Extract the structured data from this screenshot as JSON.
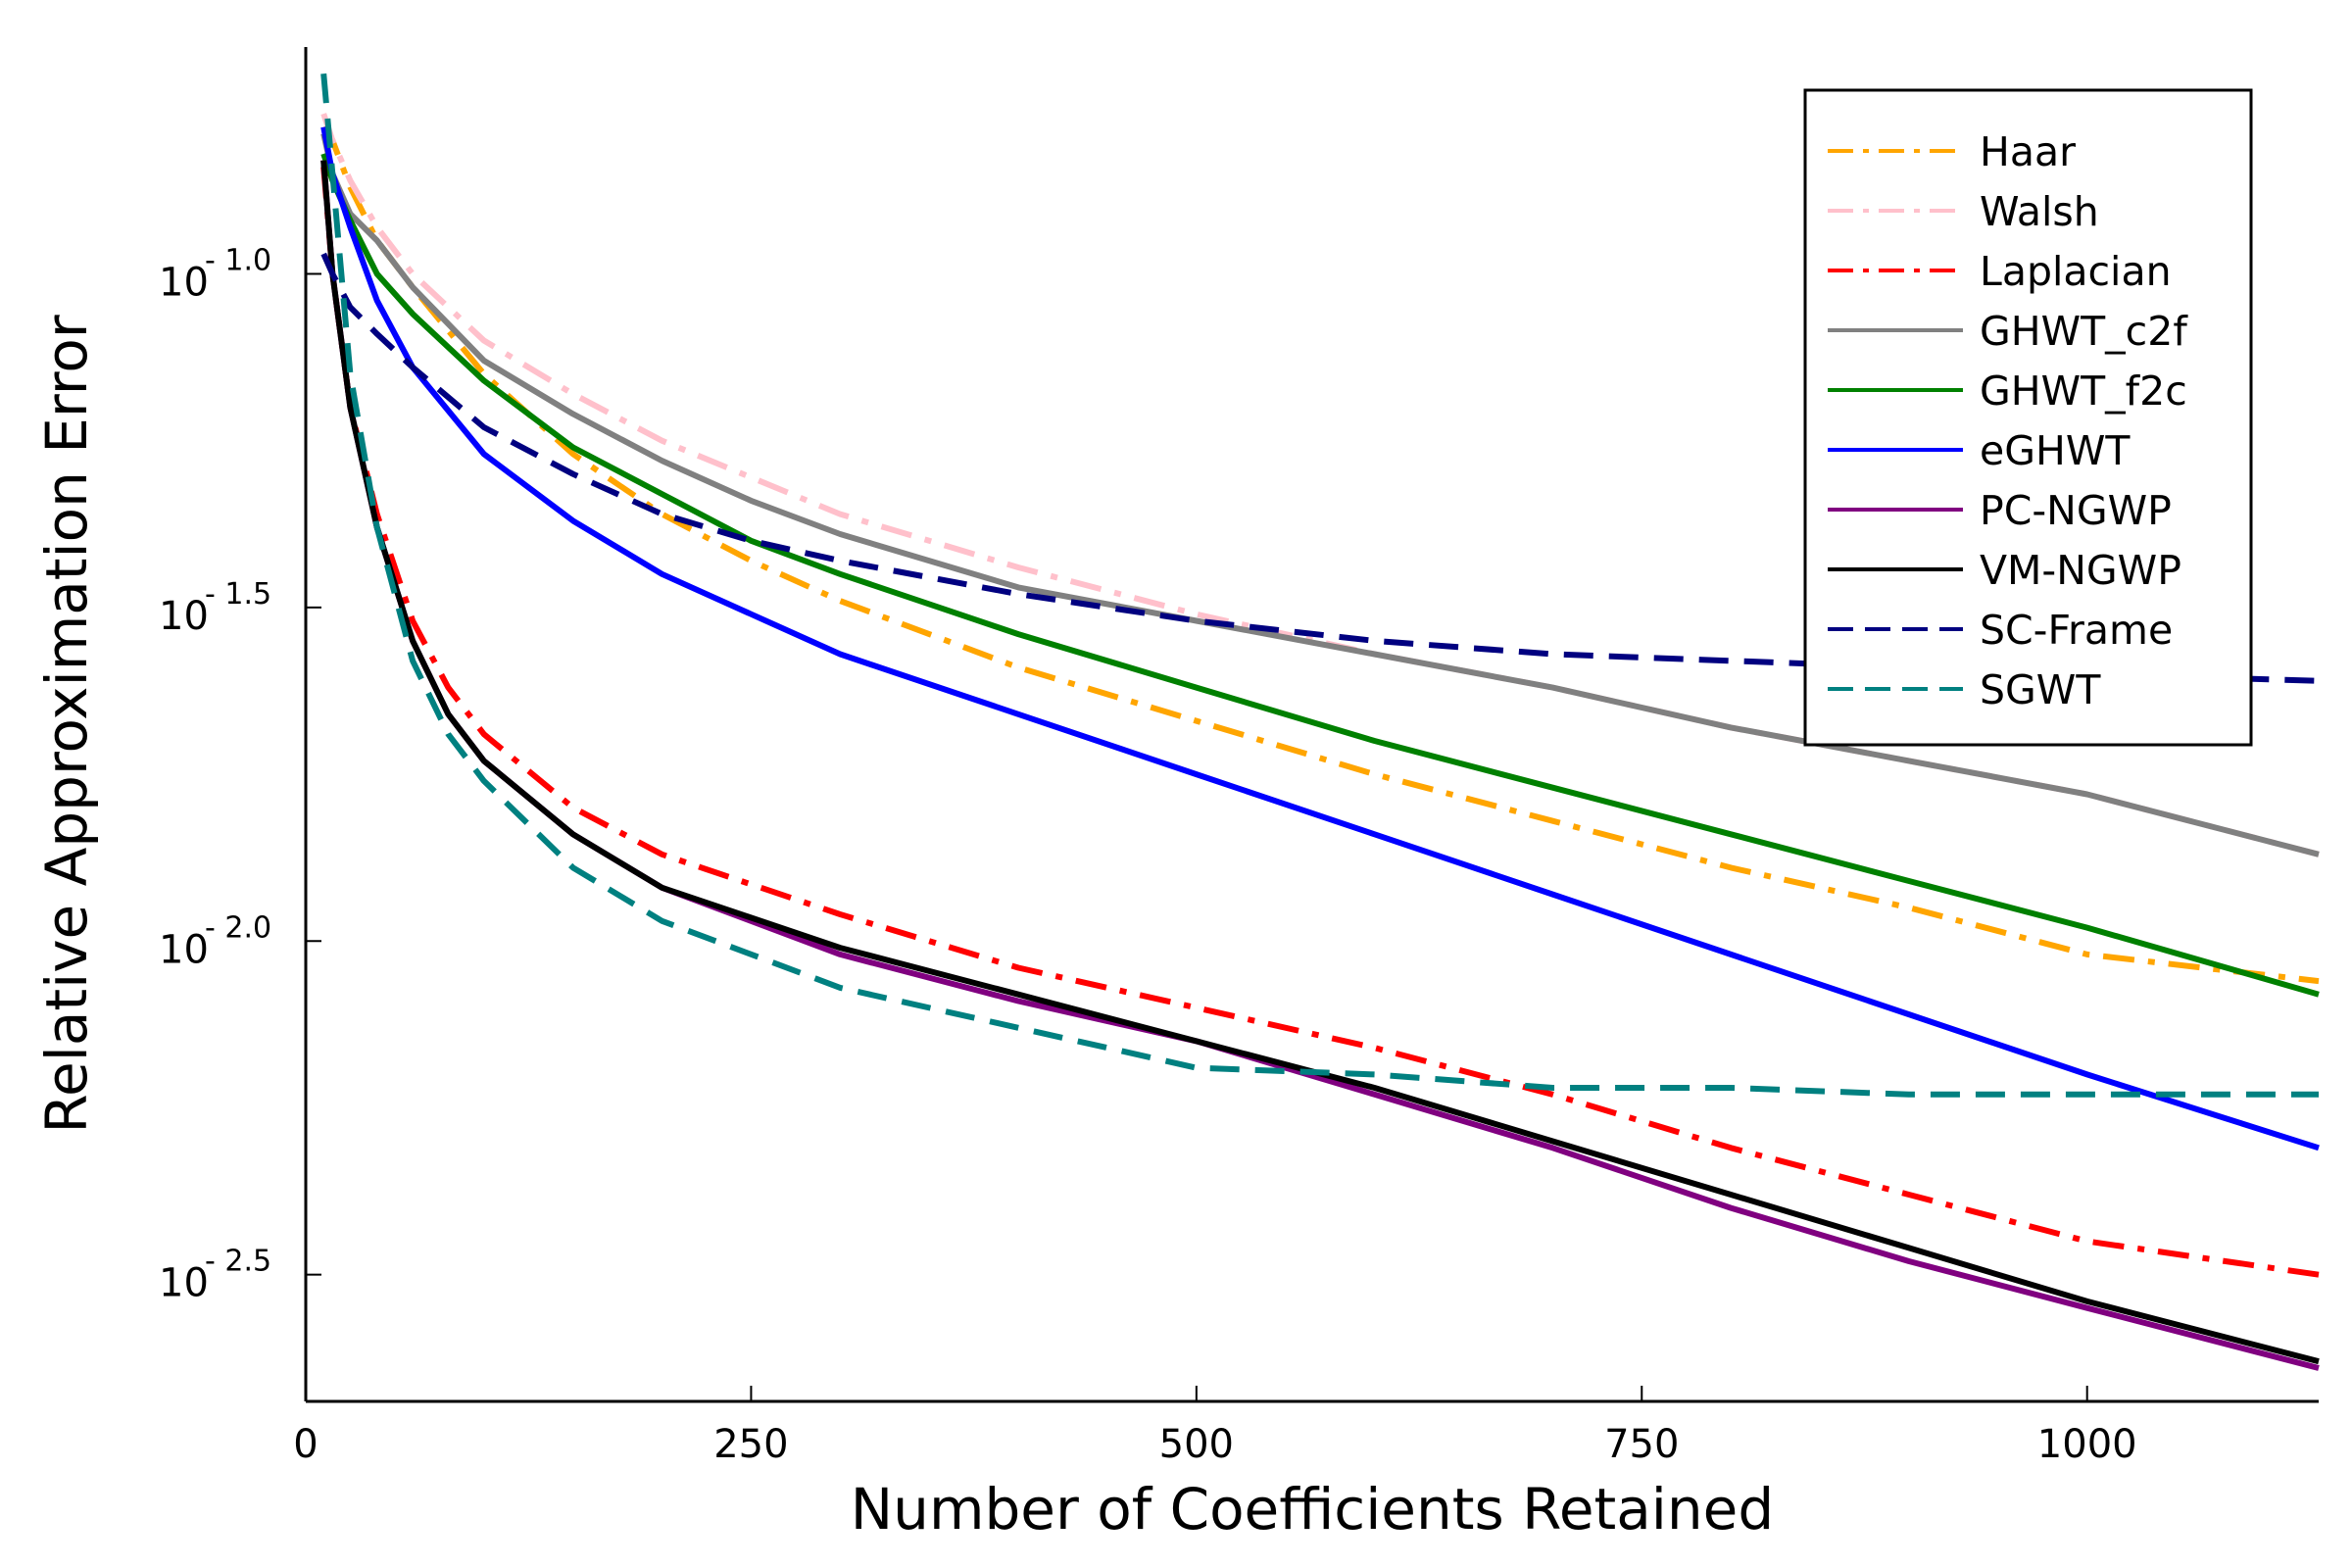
{
  "chart_data": {
    "type": "line",
    "title": "",
    "xlabel": "Number of Coefficients Retained",
    "ylabel": "Relative Approximation Error",
    "y_scale": "log10",
    "xlim": [
      0,
      1130
    ],
    "ylim_log10": [
      -2.69,
      -0.66
    ],
    "grid": false,
    "legend_position": "top-right",
    "x_ticks": [
      {
        "value": 0,
        "label": "0"
      },
      {
        "value": 250,
        "label": "250"
      },
      {
        "value": 500,
        "label": "500"
      },
      {
        "value": 750,
        "label": "750"
      },
      {
        "value": 1000,
        "label": "1000"
      }
    ],
    "y_ticks": [
      {
        "value": -1.0,
        "base": "10",
        "exp": "- 1.0"
      },
      {
        "value": -1.5,
        "base": "10",
        "exp": "- 1.5"
      },
      {
        "value": -2.0,
        "base": "10",
        "exp": "- 2.0"
      },
      {
        "value": -2.5,
        "base": "10",
        "exp": "- 2.5"
      }
    ],
    "series": [
      {
        "name": "Haar",
        "color": "#FFA500",
        "dash": "dashdot",
        "points": [
          [
            10,
            -0.78
          ],
          [
            15,
            -0.8
          ],
          [
            25,
            -0.87
          ],
          [
            40,
            -0.95
          ],
          [
            60,
            -1.02
          ],
          [
            100,
            -1.15
          ],
          [
            150,
            -1.27
          ],
          [
            200,
            -1.36
          ],
          [
            250,
            -1.43
          ],
          [
            300,
            -1.49
          ],
          [
            350,
            -1.54
          ],
          [
            400,
            -1.59
          ],
          [
            500,
            -1.67
          ],
          [
            600,
            -1.75
          ],
          [
            700,
            -1.82
          ],
          [
            800,
            -1.89
          ],
          [
            900,
            -1.95
          ],
          [
            1000,
            -2.02
          ],
          [
            1130,
            -2.06
          ]
        ]
      },
      {
        "name": "Walsh",
        "color": "#FFC0CB",
        "dash": "dashdot",
        "points": [
          [
            10,
            -0.76
          ],
          [
            15,
            -0.8
          ],
          [
            25,
            -0.86
          ],
          [
            40,
            -0.93
          ],
          [
            60,
            -1.0
          ],
          [
            100,
            -1.1
          ],
          [
            150,
            -1.18
          ],
          [
            200,
            -1.25
          ],
          [
            300,
            -1.36
          ],
          [
            400,
            -1.44
          ],
          [
            500,
            -1.51
          ],
          [
            600,
            -1.57
          ],
          [
            700,
            -1.62
          ],
          [
            800,
            -1.68
          ],
          [
            900,
            -1.73
          ],
          [
            1000,
            -1.78
          ],
          [
            1130,
            -1.87
          ]
        ]
      },
      {
        "name": "Laplacian",
        "color": "#FF0000",
        "dash": "dashdot",
        "points": [
          [
            10,
            -0.84
          ],
          [
            15,
            -1.0
          ],
          [
            25,
            -1.2
          ],
          [
            40,
            -1.36
          ],
          [
            60,
            -1.52
          ],
          [
            80,
            -1.62
          ],
          [
            100,
            -1.69
          ],
          [
            150,
            -1.8
          ],
          [
            200,
            -1.87
          ],
          [
            300,
            -1.96
          ],
          [
            400,
            -2.04
          ],
          [
            500,
            -2.1
          ],
          [
            600,
            -2.16
          ],
          [
            700,
            -2.23
          ],
          [
            800,
            -2.31
          ],
          [
            900,
            -2.38
          ],
          [
            1000,
            -2.45
          ],
          [
            1130,
            -2.5
          ]
        ]
      },
      {
        "name": "GHWT_c2f",
        "color": "#808080",
        "dash": "solid",
        "points": [
          [
            10,
            -0.79
          ],
          [
            15,
            -0.85
          ],
          [
            25,
            -0.91
          ],
          [
            40,
            -0.95
          ],
          [
            60,
            -1.02
          ],
          [
            100,
            -1.13
          ],
          [
            150,
            -1.21
          ],
          [
            200,
            -1.28
          ],
          [
            250,
            -1.34
          ],
          [
            300,
            -1.39
          ],
          [
            400,
            -1.47
          ],
          [
            500,
            -1.52
          ],
          [
            600,
            -1.57
          ],
          [
            700,
            -1.62
          ],
          [
            800,
            -1.68
          ],
          [
            900,
            -1.73
          ],
          [
            1000,
            -1.78
          ],
          [
            1130,
            -1.87
          ]
        ]
      },
      {
        "name": "GHWT_f2c",
        "color": "#008000",
        "dash": "solid",
        "points": [
          [
            10,
            -0.82
          ],
          [
            15,
            -0.86
          ],
          [
            25,
            -0.92
          ],
          [
            40,
            -1.0
          ],
          [
            60,
            -1.06
          ],
          [
            100,
            -1.16
          ],
          [
            150,
            -1.26
          ],
          [
            200,
            -1.33
          ],
          [
            250,
            -1.4
          ],
          [
            300,
            -1.45
          ],
          [
            400,
            -1.54
          ],
          [
            500,
            -1.62
          ],
          [
            600,
            -1.7
          ],
          [
            700,
            -1.77
          ],
          [
            800,
            -1.84
          ],
          [
            900,
            -1.91
          ],
          [
            1000,
            -1.98
          ],
          [
            1130,
            -2.08
          ]
        ]
      },
      {
        "name": "eGHWT",
        "color": "#0000FF",
        "dash": "solid",
        "points": [
          [
            10,
            -0.78
          ],
          [
            15,
            -0.85
          ],
          [
            25,
            -0.93
          ],
          [
            40,
            -1.04
          ],
          [
            60,
            -1.14
          ],
          [
            100,
            -1.27
          ],
          [
            150,
            -1.37
          ],
          [
            200,
            -1.45
          ],
          [
            250,
            -1.51
          ],
          [
            300,
            -1.57
          ],
          [
            400,
            -1.66
          ],
          [
            500,
            -1.75
          ],
          [
            600,
            -1.84
          ],
          [
            700,
            -1.93
          ],
          [
            800,
            -2.02
          ],
          [
            900,
            -2.11
          ],
          [
            1000,
            -2.2
          ],
          [
            1130,
            -2.31
          ]
        ]
      },
      {
        "name": "PC-NGWP",
        "color": "#800080",
        "dash": "solid",
        "points": [
          [
            10,
            -0.83
          ],
          [
            15,
            -1.0
          ],
          [
            25,
            -1.2
          ],
          [
            40,
            -1.38
          ],
          [
            60,
            -1.55
          ],
          [
            80,
            -1.66
          ],
          [
            100,
            -1.73
          ],
          [
            150,
            -1.84
          ],
          [
            200,
            -1.92
          ],
          [
            300,
            -2.02
          ],
          [
            400,
            -2.09
          ],
          [
            500,
            -2.15
          ],
          [
            600,
            -2.23
          ],
          [
            700,
            -2.31
          ],
          [
            800,
            -2.4
          ],
          [
            900,
            -2.48
          ],
          [
            1000,
            -2.55
          ],
          [
            1130,
            -2.64
          ]
        ]
      },
      {
        "name": "VM-NGWP",
        "color": "#000000",
        "dash": "solid",
        "points": [
          [
            10,
            -0.83
          ],
          [
            15,
            -1.0
          ],
          [
            25,
            -1.2
          ],
          [
            40,
            -1.38
          ],
          [
            60,
            -1.55
          ],
          [
            80,
            -1.66
          ],
          [
            100,
            -1.73
          ],
          [
            150,
            -1.84
          ],
          [
            200,
            -1.92
          ],
          [
            300,
            -2.01
          ],
          [
            400,
            -2.08
          ],
          [
            500,
            -2.15
          ],
          [
            600,
            -2.22
          ],
          [
            700,
            -2.3
          ],
          [
            800,
            -2.38
          ],
          [
            900,
            -2.46
          ],
          [
            1000,
            -2.54
          ],
          [
            1130,
            -2.63
          ]
        ]
      },
      {
        "name": "SC-Frame",
        "color": "#000080",
        "dash": "dash",
        "points": [
          [
            10,
            -0.97
          ],
          [
            15,
            -1.0
          ],
          [
            25,
            -1.05
          ],
          [
            40,
            -1.09
          ],
          [
            60,
            -1.14
          ],
          [
            100,
            -1.23
          ],
          [
            150,
            -1.3
          ],
          [
            200,
            -1.36
          ],
          [
            250,
            -1.4
          ],
          [
            300,
            -1.43
          ],
          [
            400,
            -1.48
          ],
          [
            500,
            -1.52
          ],
          [
            600,
            -1.55
          ],
          [
            700,
            -1.57
          ],
          [
            800,
            -1.58
          ],
          [
            900,
            -1.59
          ],
          [
            1000,
            -1.6
          ],
          [
            1130,
            -1.61
          ]
        ]
      },
      {
        "name": "SGWT",
        "color": "#008080",
        "dash": "dash",
        "points": [
          [
            10,
            -0.7
          ],
          [
            15,
            -0.85
          ],
          [
            25,
            -1.15
          ],
          [
            40,
            -1.38
          ],
          [
            60,
            -1.58
          ],
          [
            80,
            -1.69
          ],
          [
            100,
            -1.76
          ],
          [
            150,
            -1.89
          ],
          [
            200,
            -1.97
          ],
          [
            300,
            -2.07
          ],
          [
            400,
            -2.13
          ],
          [
            500,
            -2.19
          ],
          [
            600,
            -2.2
          ],
          [
            700,
            -2.22
          ],
          [
            800,
            -2.22
          ],
          [
            900,
            -2.23
          ],
          [
            1000,
            -2.23
          ],
          [
            1130,
            -2.23
          ]
        ]
      }
    ]
  }
}
